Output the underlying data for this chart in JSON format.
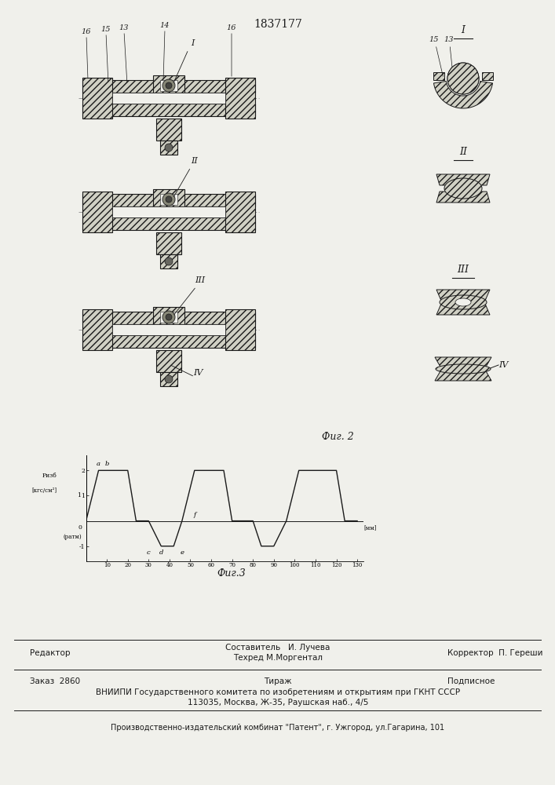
{
  "patent_number": "1837177",
  "fig2_label": "Фиг. 2",
  "fig3_label": "Фиг.3",
  "compositor": "Составитель   И. Лучева",
  "editor_label": "Редактор",
  "techred": "Техред М.Моргентал",
  "corrector_label": "Корректор  П. Гереши",
  "order_label": "Заказ  2860",
  "tirazh_label": "Тираж",
  "podpisnoe_label": "Подписное",
  "vnipi_line1": "ВНИИПИ Государственного комитета по изобретениям и открытиям при ГКНТ СССР",
  "vnipi_line2": "113035, Москва, Ж-35, Раушская наб., 4/5",
  "production_line": "Производственно-издательский комбинат \"Патент\", г. Ужгород, ул.Гагарина, 101",
  "background_color": "#f0f0eb",
  "line_color": "#1a1a1a",
  "hatch_fc": "#d0d0c4"
}
